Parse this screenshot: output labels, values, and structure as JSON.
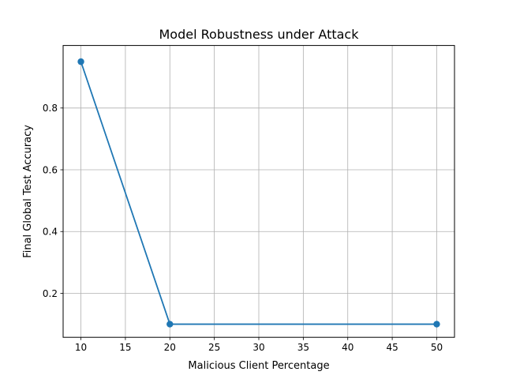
{
  "chart_data": {
    "type": "line",
    "title": "Model Robustness under Attack",
    "xlabel": "Malicious Client Percentage",
    "ylabel": "Final Global Test Accuracy",
    "xlim": [
      8,
      52
    ],
    "ylim": [
      0.0575,
      1.0025
    ],
    "xticks": [
      10,
      15,
      20,
      25,
      30,
      35,
      40,
      45,
      50
    ],
    "xtick_labels": [
      "10",
      "15",
      "20",
      "25",
      "30",
      "35",
      "40",
      "45",
      "50"
    ],
    "yticks": [
      0.2,
      0.4,
      0.6,
      0.8
    ],
    "ytick_labels": [
      "0.2",
      "0.4",
      "0.6",
      "0.8"
    ],
    "grid": true,
    "series": [
      {
        "color": "#1f77b4",
        "marker": "circle",
        "x": [
          10,
          20,
          50
        ],
        "y": [
          0.95,
          0.1,
          0.1
        ]
      }
    ]
  }
}
